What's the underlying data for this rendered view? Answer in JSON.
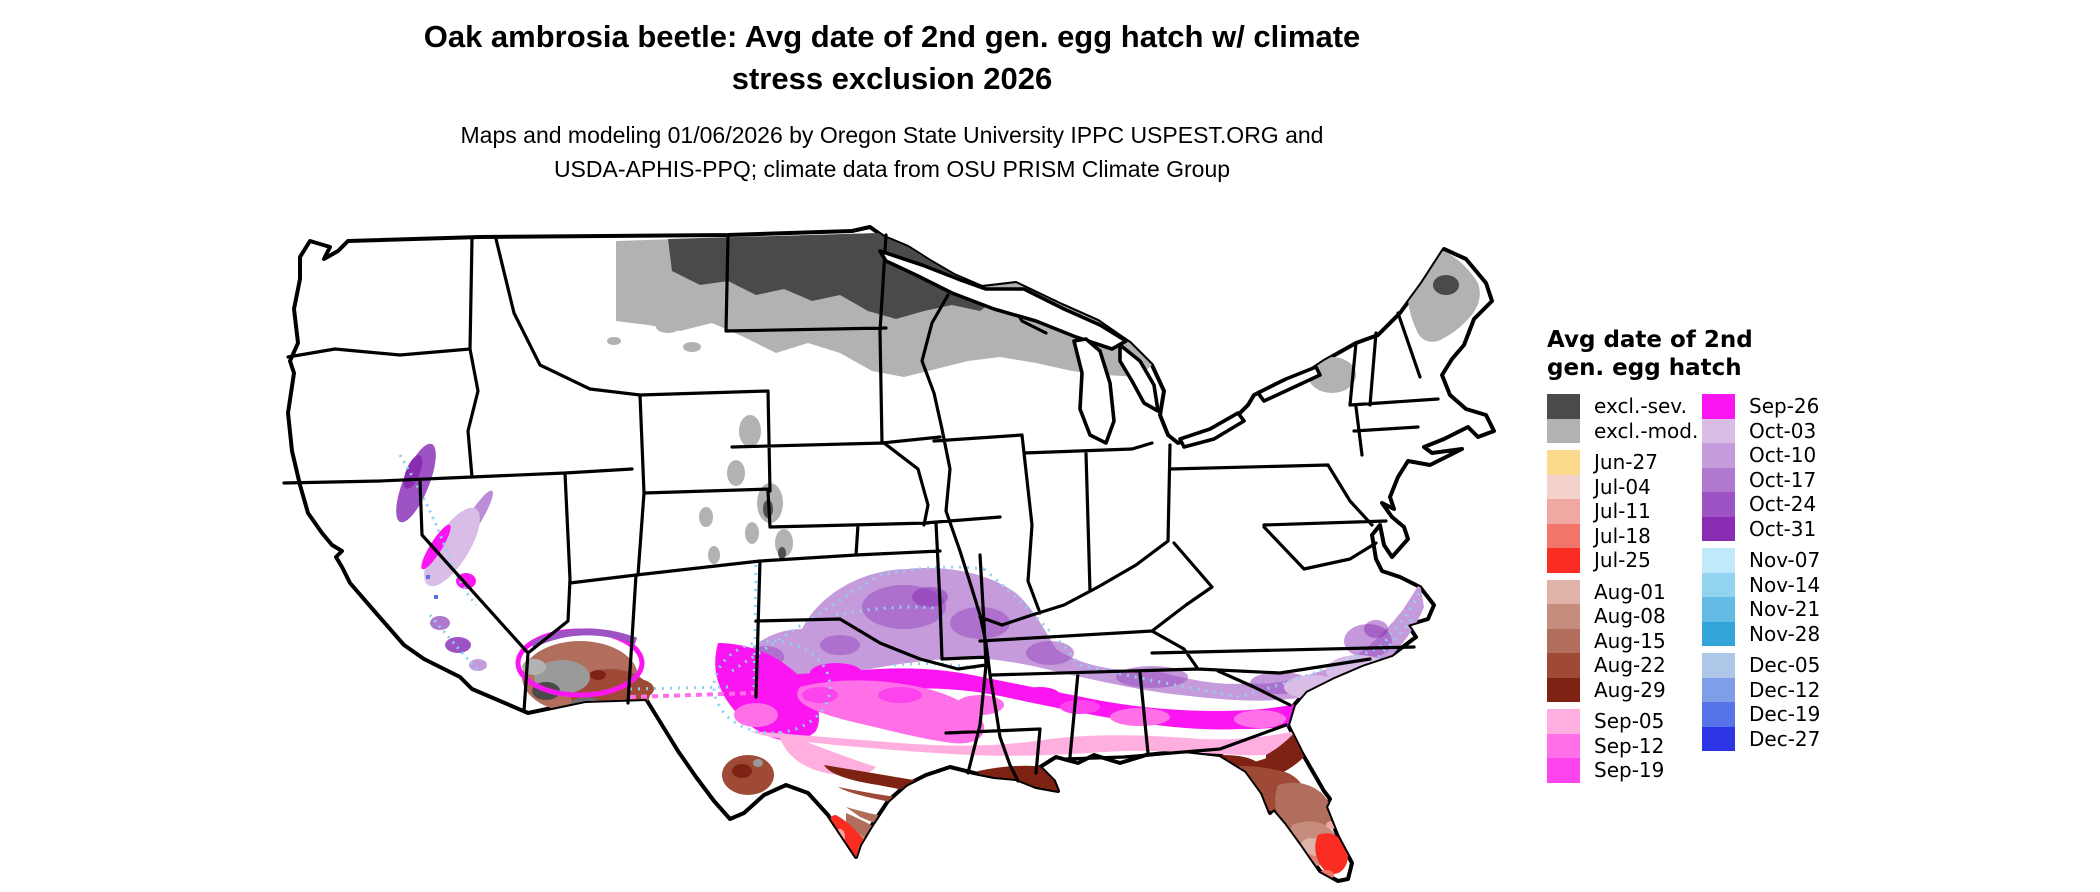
{
  "header": {
    "title_line1": "Oak ambrosia beetle: Avg date of 2nd gen. egg hatch w/ climate",
    "title_line2": "stress exclusion 2026",
    "subtitle_line1": "Maps and modeling 01/06/2026 by Oregon State University IPPC USPEST.ORG and",
    "subtitle_line2": "USDA-APHIS-PPQ; climate data from OSU PRISM Climate Group"
  },
  "legend": {
    "title_line1": "Avg date of 2nd",
    "title_line2": "gen. egg hatch",
    "column1": [
      {
        "label": "excl.-sev.",
        "color": "#4a4a4a"
      },
      {
        "label": "excl.-mod.",
        "color": "#b2b2b2"
      },
      {
        "label": "Jun-27",
        "color": "#fbd98d",
        "gap_before": true
      },
      {
        "label": "Jul-04",
        "color": "#f3d1cd"
      },
      {
        "label": "Jul-11",
        "color": "#f0a8a2"
      },
      {
        "label": "Jul-18",
        "color": "#f2756c"
      },
      {
        "label": "Jul-25",
        "color": "#fb2c21"
      },
      {
        "label": "Aug-01",
        "color": "#dfb3a8",
        "gap_before": true
      },
      {
        "label": "Aug-08",
        "color": "#c68d7e"
      },
      {
        "label": "Aug-15",
        "color": "#b26e5c"
      },
      {
        "label": "Aug-22",
        "color": "#9e4a36"
      },
      {
        "label": "Aug-29",
        "color": "#7e2213"
      },
      {
        "label": "Sep-05",
        "color": "#feafe0",
        "gap_before": true
      },
      {
        "label": "Sep-12",
        "color": "#fe6fe8"
      },
      {
        "label": "Sep-19",
        "color": "#fd43ee"
      }
    ],
    "column2": [
      {
        "label": "Sep-26",
        "color": "#fb16f1"
      },
      {
        "label": "Oct-03",
        "color": "#d9bde6"
      },
      {
        "label": "Oct-10",
        "color": "#c59bdb"
      },
      {
        "label": "Oct-17",
        "color": "#b178cf"
      },
      {
        "label": "Oct-24",
        "color": "#9d53c3"
      },
      {
        "label": "Oct-31",
        "color": "#8a2cb3"
      },
      {
        "label": "Nov-07",
        "color": "#c0e9fb",
        "gap_before": true
      },
      {
        "label": "Nov-14",
        "color": "#92d4ef"
      },
      {
        "label": "Nov-21",
        "color": "#62bce4"
      },
      {
        "label": "Nov-28",
        "color": "#33a5da"
      },
      {
        "label": "Dec-05",
        "color": "#aec6e8",
        "gap_before": true
      },
      {
        "label": "Dec-12",
        "color": "#7f9ee9"
      },
      {
        "label": "Dec-19",
        "color": "#5673e8"
      },
      {
        "label": "Dec-27",
        "color": "#2b35e3"
      }
    ]
  },
  "chart_data": {
    "type": "heatmap",
    "subtype": "choropleth-map",
    "map_extent": "Conterminous United States with state boundaries",
    "title": "Oak ambrosia beetle: Avg date of 2nd gen. egg hatch w/ climate stress exclusion 2026",
    "legend_title": "Avg date of 2nd gen. egg hatch",
    "legend_position": "right",
    "classes": [
      "excl.-sev.",
      "excl.-mod.",
      "Jun-27",
      "Jul-04",
      "Jul-11",
      "Jul-18",
      "Jul-25",
      "Aug-01",
      "Aug-08",
      "Aug-15",
      "Aug-22",
      "Aug-29",
      "Sep-05",
      "Sep-12",
      "Sep-19",
      "Sep-26",
      "Oct-03",
      "Oct-10",
      "Oct-17",
      "Oct-24",
      "Oct-31",
      "Nov-07",
      "Nov-14",
      "Nov-21",
      "Nov-28",
      "Dec-05",
      "Dec-12",
      "Dec-19",
      "Dec-27"
    ],
    "palette": {
      "excl.-sev.": "#4a4a4a",
      "excl.-mod.": "#b2b2b2",
      "Jun-27": "#fbd98d",
      "Jul-04": "#f3d1cd",
      "Jul-11": "#f0a8a2",
      "Jul-18": "#f2756c",
      "Jul-25": "#fb2c21",
      "Aug-01": "#dfb3a8",
      "Aug-08": "#c68d7e",
      "Aug-15": "#b26e5c",
      "Aug-22": "#9e4a36",
      "Aug-29": "#7e2213",
      "Sep-05": "#feafe0",
      "Sep-12": "#fe6fe8",
      "Sep-19": "#fd43ee",
      "Sep-26": "#fb16f1",
      "Oct-03": "#d9bde6",
      "Oct-10": "#c59bdb",
      "Oct-17": "#b178cf",
      "Oct-24": "#9d53c3",
      "Oct-31": "#8a2cb3",
      "Nov-07": "#c0e9fb",
      "Nov-14": "#92d4ef",
      "Nov-21": "#62bce4",
      "Nov-28": "#33a5da",
      "Dec-05": "#aec6e8",
      "Dec-12": "#7f9ee9",
      "Dec-19": "#5673e8",
      "Dec-27": "#2b35e3"
    },
    "regions": [
      {
        "area": "North Dakota and northern Minnesota",
        "value": "excl.-sev."
      },
      {
        "area": "South Dakota, central Minnesota, northern Wisconsin, Upper Michigan",
        "value": "excl.-mod."
      },
      {
        "area": "northern Maine",
        "value": "excl.-mod. with small excl.-sev. core"
      },
      {
        "area": "Adirondacks (northern New York)",
        "value": "excl.-mod."
      },
      {
        "area": "Rocky Mountain highlands (MT, WY, UT, CO)",
        "value": "excl.-mod. patches with excl.-sev. cores"
      },
      {
        "area": "central Arizona highlands",
        "value": "excl.-mod./excl.-sev. patches surrounded by Aug browns"
      },
      {
        "area": "band across Oklahoma, Arkansas, Tennessee valley, piedmont and coastal Carolinas/Virginia",
        "value": "Oct-03 to Oct-31 purples with Nov-07/Nov-14 cyan speckles"
      },
      {
        "area": "north/west Texas through central Mississippi, Alabama, Georgia, coastal South Carolina",
        "value": "Sep-12 to Sep-26 pinks and magenta"
      },
      {
        "area": "central Texas and inner Gulf states belt",
        "value": "Sep-05 pale pink"
      },
      {
        "area": "Texas hill country to Louisiana and southern Georgia / north Florida",
        "value": "Aug-22 and Aug-29 browns"
      },
      {
        "area": "coastal south Texas and central Florida",
        "value": "Aug-01 to Aug-15 light browns"
      },
      {
        "area": "deep south Texas and south Florida",
        "value": "Jul-18 and Jul-25 reds"
      },
      {
        "area": "Florida Keys",
        "value": "Jun-27"
      },
      {
        "area": "California Central Valley, Sierra foothills and south coast",
        "value": "Sep-Oct pinks/purples with Nov-Dec blue speckles"
      },
      {
        "area": "rest of the interior and northern U.S.",
        "value": "no class (white)"
      }
    ]
  }
}
